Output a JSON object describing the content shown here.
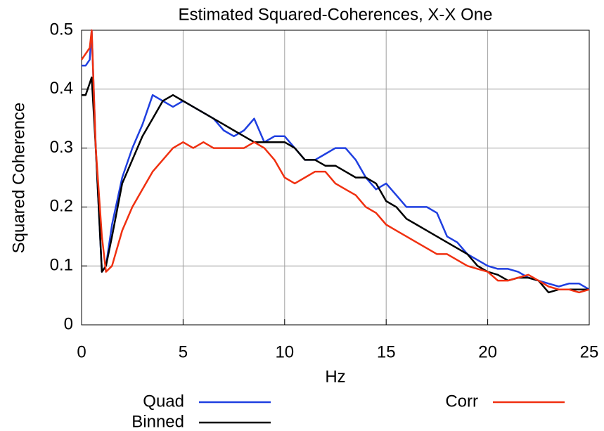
{
  "chart_data": {
    "type": "line",
    "title": "Estimated Squared-Coherences, X-X One",
    "x_label": "Hz",
    "y_label": "Squared Coherence",
    "x": [
      0,
      0.2,
      0.4,
      0.5,
      0.7,
      1,
      1.2,
      1.5,
      2,
      2.5,
      3,
      3.5,
      4,
      4.5,
      5,
      5.5,
      6,
      6.5,
      7,
      7.5,
      8,
      8.5,
      9,
      9.5,
      10,
      10.5,
      11,
      11.5,
      12,
      12.5,
      13,
      13.5,
      14,
      14.5,
      15,
      15.5,
      16,
      16.5,
      17,
      17.5,
      18,
      18.5,
      19,
      19.5,
      20,
      20.5,
      21,
      21.5,
      22,
      22.5,
      23,
      23.5,
      24,
      24.5,
      25
    ],
    "series": [
      {
        "name": "Quad",
        "color": "#1f3fe0",
        "values": [
          0.44,
          0.44,
          0.45,
          0.5,
          0.3,
          0.09,
          0.1,
          0.17,
          0.25,
          0.3,
          0.34,
          0.39,
          0.38,
          0.37,
          0.38,
          0.37,
          0.36,
          0.35,
          0.33,
          0.32,
          0.33,
          0.35,
          0.31,
          0.32,
          0.32,
          0.3,
          0.28,
          0.28,
          0.29,
          0.3,
          0.3,
          0.28,
          0.25,
          0.23,
          0.24,
          0.22,
          0.2,
          0.2,
          0.2,
          0.19,
          0.15,
          0.14,
          0.12,
          0.11,
          0.1,
          0.095,
          0.095,
          0.09,
          0.08,
          0.075,
          0.07,
          0.065,
          0.07,
          0.07,
          0.06
        ]
      },
      {
        "name": "Binned",
        "color": "#000000",
        "values": [
          0.39,
          0.39,
          0.41,
          0.42,
          0.3,
          0.09,
          0.1,
          0.15,
          0.24,
          0.28,
          0.32,
          0.35,
          0.38,
          0.39,
          0.38,
          0.37,
          0.36,
          0.35,
          0.34,
          0.33,
          0.32,
          0.31,
          0.31,
          0.31,
          0.31,
          0.3,
          0.28,
          0.28,
          0.27,
          0.27,
          0.26,
          0.25,
          0.25,
          0.24,
          0.21,
          0.2,
          0.18,
          0.17,
          0.16,
          0.15,
          0.14,
          0.13,
          0.12,
          0.1,
          0.09,
          0.085,
          0.075,
          0.08,
          0.08,
          0.075,
          0.055,
          0.06,
          0.06,
          0.06,
          0.06
        ]
      },
      {
        "name": "Corr",
        "color": "#f03010",
        "values": [
          0.45,
          0.46,
          0.47,
          0.5,
          0.3,
          0.15,
          0.09,
          0.1,
          0.16,
          0.2,
          0.23,
          0.26,
          0.28,
          0.3,
          0.31,
          0.3,
          0.31,
          0.3,
          0.3,
          0.3,
          0.3,
          0.31,
          0.3,
          0.28,
          0.25,
          0.24,
          0.25,
          0.26,
          0.26,
          0.24,
          0.23,
          0.22,
          0.2,
          0.19,
          0.17,
          0.16,
          0.15,
          0.14,
          0.13,
          0.12,
          0.12,
          0.11,
          0.1,
          0.095,
          0.09,
          0.075,
          0.075,
          0.08,
          0.085,
          0.075,
          0.065,
          0.06,
          0.06,
          0.055,
          0.06
        ]
      }
    ],
    "xlim": [
      0,
      25
    ],
    "xticks": [
      0,
      5,
      10,
      15,
      20,
      25
    ],
    "ylim": [
      0,
      0.5
    ],
    "yticks": [
      0,
      0.1,
      0.2,
      0.3,
      0.4,
      0.5
    ],
    "grid": true
  }
}
